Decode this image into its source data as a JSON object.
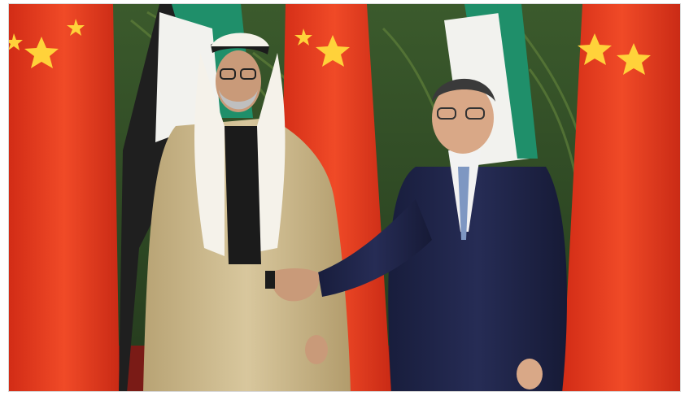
{
  "photo": {
    "subject": "",
    "colors": {
      "background_foliage": "#2f4a26",
      "foliage_highlight": "#5f7f3a",
      "chinese_flag_red": "#e23a1f",
      "chinese_flag_star": "#ffd23a",
      "uae_flag_green": "#1f8f6a",
      "uae_flag_white": "#f2f2ee",
      "uae_flag_black": "#1f1f1f",
      "robe_beige": "#c9b68a",
      "suit_navy": "#1f2447",
      "floor_red": "#7a1b16"
    }
  }
}
